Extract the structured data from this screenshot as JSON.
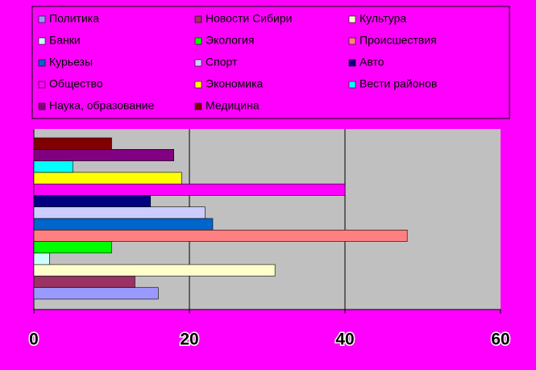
{
  "chart_data": {
    "type": "bar",
    "orientation": "horizontal",
    "series": [
      {
        "name": "Политика",
        "color": "#9999ff",
        "values": [
          16
        ]
      },
      {
        "name": "Новости Сибири",
        "color": "#993366",
        "values": [
          13
        ]
      },
      {
        "name": "Культура",
        "color": "#ffffcc",
        "values": [
          31
        ]
      },
      {
        "name": "Банки",
        "color": "#ccffff",
        "values": [
          2
        ]
      },
      {
        "name": "Экология",
        "color": "#00ff00",
        "values": [
          10
        ]
      },
      {
        "name": "Происшествия",
        "color": "#ff8080",
        "values": [
          48
        ]
      },
      {
        "name": "Курьезы",
        "color": "#0066cc",
        "values": [
          23
        ]
      },
      {
        "name": "Спорт",
        "color": "#ccccff",
        "values": [
          22
        ]
      },
      {
        "name": "Авто",
        "color": "#000080",
        "values": [
          15
        ]
      },
      {
        "name": "Общество",
        "color": "#ff00ff",
        "values": [
          40
        ]
      },
      {
        "name": "Экономика",
        "color": "#ffff00",
        "values": [
          19
        ]
      },
      {
        "name": "Вести районов",
        "color": "#00ffff",
        "values": [
          5
        ]
      },
      {
        "name": "Наука, образование",
        "color": "#800080",
        "values": [
          18
        ]
      },
      {
        "name": "Медицина",
        "color": "#800000",
        "values": [
          10
        ]
      }
    ],
    "xlim": [
      0,
      60
    ],
    "xticks": [
      0,
      20,
      40,
      60
    ],
    "grid": true,
    "legend": "top"
  }
}
